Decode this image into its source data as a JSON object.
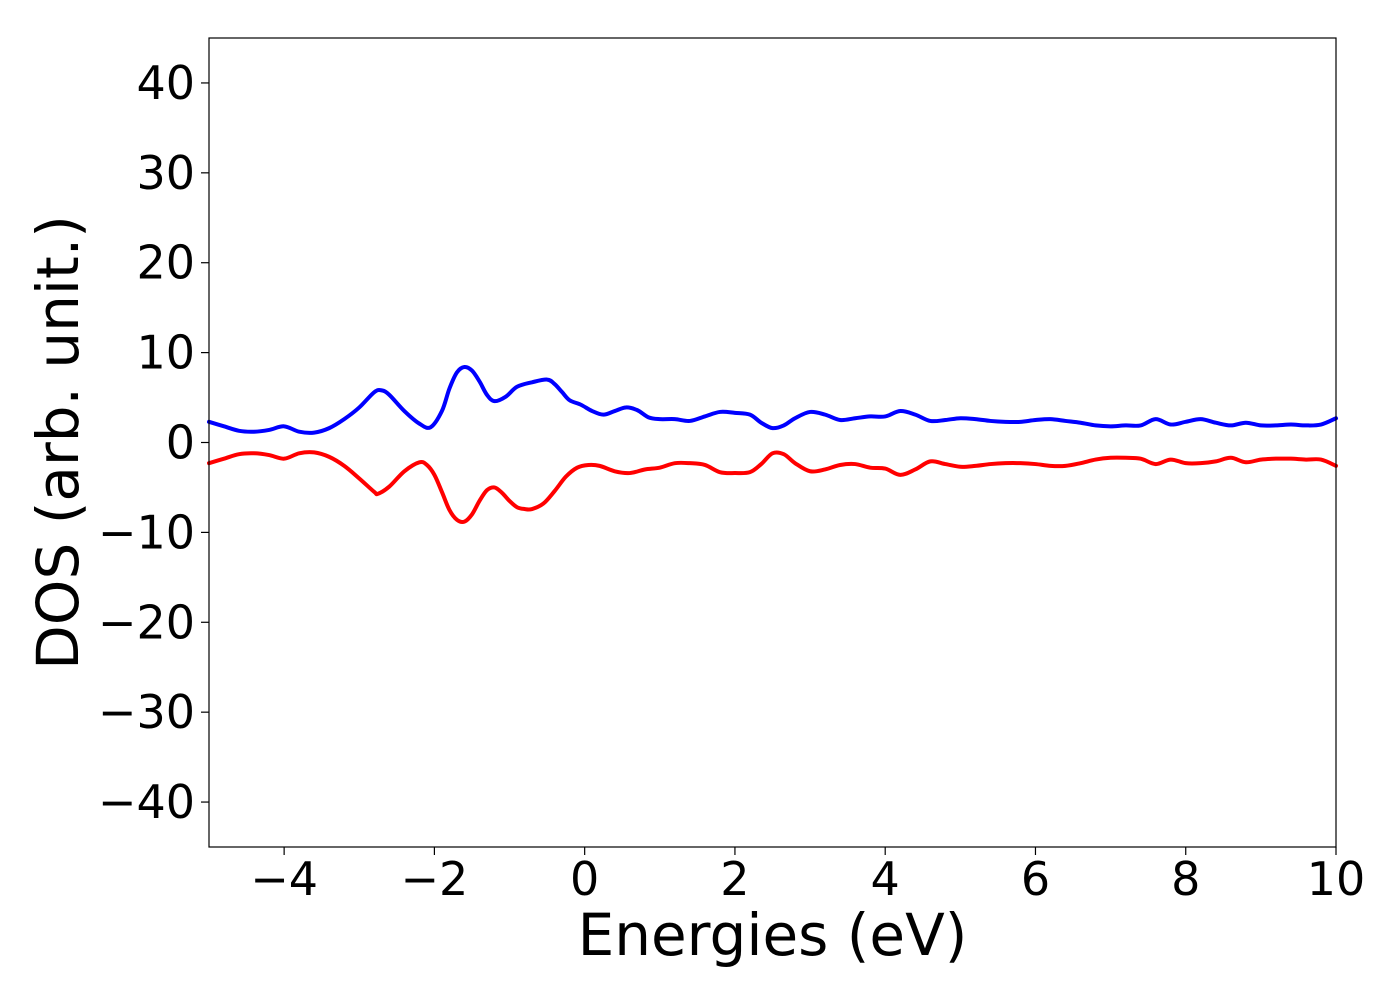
{
  "chart_data": {
    "type": "line",
    "title": "",
    "xlabel": "Energies (eV)",
    "ylabel": "DOS (arb. unit.)",
    "xlim": [
      -5,
      10
    ],
    "ylim": [
      -45,
      45
    ],
    "xticks": [
      -4,
      -2,
      0,
      2,
      4,
      6,
      8,
      10
    ],
    "yticks": [
      40,
      30,
      20,
      10,
      0,
      -10,
      -20,
      -30,
      -40
    ],
    "xtick_labels": [
      "−4",
      "−2",
      "0",
      "2",
      "4",
      "6",
      "8",
      "10"
    ],
    "ytick_labels": [
      "40",
      "30",
      "20",
      "10",
      "0",
      "−10",
      "−20",
      "−30",
      "−40"
    ],
    "grid": false,
    "legend": "none",
    "series": [
      {
        "color": "#0000ff",
        "x": [
          -5,
          -4.8,
          -4.6,
          -4.4,
          -4.2,
          -4.0,
          -3.8,
          -3.6,
          -3.4,
          -3.2,
          -3.0,
          -2.8,
          -2.7,
          -2.6,
          -2.4,
          -2.2,
          -2.05,
          -1.9,
          -1.8,
          -1.7,
          -1.6,
          -1.5,
          -1.4,
          -1.3,
          -1.2,
          -1.05,
          -0.9,
          -0.7,
          -0.5,
          -0.4,
          -0.3,
          -0.2,
          -0.05,
          0.1,
          0.25,
          0.4,
          0.55,
          0.7,
          0.85,
          1.0,
          1.2,
          1.4,
          1.6,
          1.8,
          2.0,
          2.2,
          2.35,
          2.5,
          2.65,
          2.8,
          3.0,
          3.2,
          3.4,
          3.6,
          3.8,
          4.0,
          4.2,
          4.4,
          4.6,
          4.8,
          5.0,
          5.2,
          5.4,
          5.6,
          5.8,
          6.0,
          6.2,
          6.4,
          6.6,
          6.8,
          7.0,
          7.2,
          7.4,
          7.6,
          7.8,
          8.0,
          8.2,
          8.4,
          8.6,
          8.8,
          9.0,
          9.2,
          9.4,
          9.6,
          9.8,
          10.0
        ],
        "y": [
          2.3,
          1.8,
          1.3,
          1.2,
          1.4,
          1.8,
          1.2,
          1.1,
          1.6,
          2.6,
          3.9,
          5.6,
          5.8,
          5.3,
          3.5,
          2.1,
          1.7,
          3.5,
          6.0,
          7.8,
          8.4,
          8.0,
          6.8,
          5.3,
          4.6,
          5.1,
          6.2,
          6.7,
          7.0,
          6.5,
          5.6,
          4.7,
          4.2,
          3.5,
          3.1,
          3.5,
          3.9,
          3.6,
          2.8,
          2.6,
          2.6,
          2.4,
          2.9,
          3.4,
          3.3,
          3.1,
          2.2,
          1.6,
          1.9,
          2.7,
          3.4,
          3.1,
          2.5,
          2.7,
          2.9,
          2.9,
          3.5,
          3.1,
          2.4,
          2.5,
          2.7,
          2.6,
          2.4,
          2.3,
          2.3,
          2.5,
          2.6,
          2.4,
          2.2,
          1.9,
          1.8,
          1.9,
          1.9,
          2.6,
          2.0,
          2.3,
          2.6,
          2.2,
          1.9,
          2.2,
          1.9,
          1.9,
          2.0,
          1.9,
          2.0,
          2.7
        ]
      },
      {
        "color": "#ff0000",
        "x": [
          -5,
          -4.8,
          -4.6,
          -4.4,
          -4.2,
          -4.0,
          -3.8,
          -3.6,
          -3.4,
          -3.2,
          -3.0,
          -2.8,
          -2.75,
          -2.6,
          -2.4,
          -2.2,
          -2.1,
          -2.0,
          -1.9,
          -1.8,
          -1.7,
          -1.6,
          -1.5,
          -1.4,
          -1.3,
          -1.2,
          -1.1,
          -1.0,
          -0.9,
          -0.8,
          -0.7,
          -0.55,
          -0.4,
          -0.25,
          -0.1,
          0.05,
          0.2,
          0.4,
          0.6,
          0.8,
          1.0,
          1.2,
          1.4,
          1.6,
          1.8,
          2.0,
          2.2,
          2.35,
          2.5,
          2.65,
          2.8,
          3.0,
          3.2,
          3.4,
          3.6,
          3.8,
          4.0,
          4.2,
          4.4,
          4.6,
          4.8,
          5.0,
          5.2,
          5.4,
          5.6,
          5.8,
          6.0,
          6.2,
          6.4,
          6.6,
          6.8,
          7.0,
          7.2,
          7.4,
          7.6,
          7.8,
          8.0,
          8.2,
          8.4,
          8.6,
          8.8,
          9.0,
          9.2,
          9.4,
          9.6,
          9.8,
          10.0
        ],
        "y": [
          -2.3,
          -1.8,
          -1.3,
          -1.2,
          -1.4,
          -1.8,
          -1.2,
          -1.1,
          -1.6,
          -2.6,
          -4.0,
          -5.5,
          -5.7,
          -4.9,
          -3.2,
          -2.2,
          -2.5,
          -3.6,
          -5.5,
          -7.5,
          -8.6,
          -8.8,
          -8.0,
          -6.5,
          -5.3,
          -5.0,
          -5.6,
          -6.5,
          -7.2,
          -7.4,
          -7.4,
          -6.8,
          -5.4,
          -3.8,
          -2.8,
          -2.5,
          -2.6,
          -3.2,
          -3.4,
          -3.0,
          -2.8,
          -2.3,
          -2.3,
          -2.5,
          -3.3,
          -3.4,
          -3.3,
          -2.4,
          -1.2,
          -1.3,
          -2.3,
          -3.2,
          -3.0,
          -2.5,
          -2.4,
          -2.8,
          -2.9,
          -3.6,
          -3.0,
          -2.1,
          -2.4,
          -2.7,
          -2.6,
          -2.4,
          -2.3,
          -2.3,
          -2.4,
          -2.6,
          -2.6,
          -2.3,
          -1.9,
          -1.7,
          -1.7,
          -1.8,
          -2.4,
          -1.9,
          -2.3,
          -2.3,
          -2.1,
          -1.7,
          -2.2,
          -1.9,
          -1.8,
          -1.8,
          -1.9,
          -1.9,
          -2.6
        ]
      }
    ]
  }
}
